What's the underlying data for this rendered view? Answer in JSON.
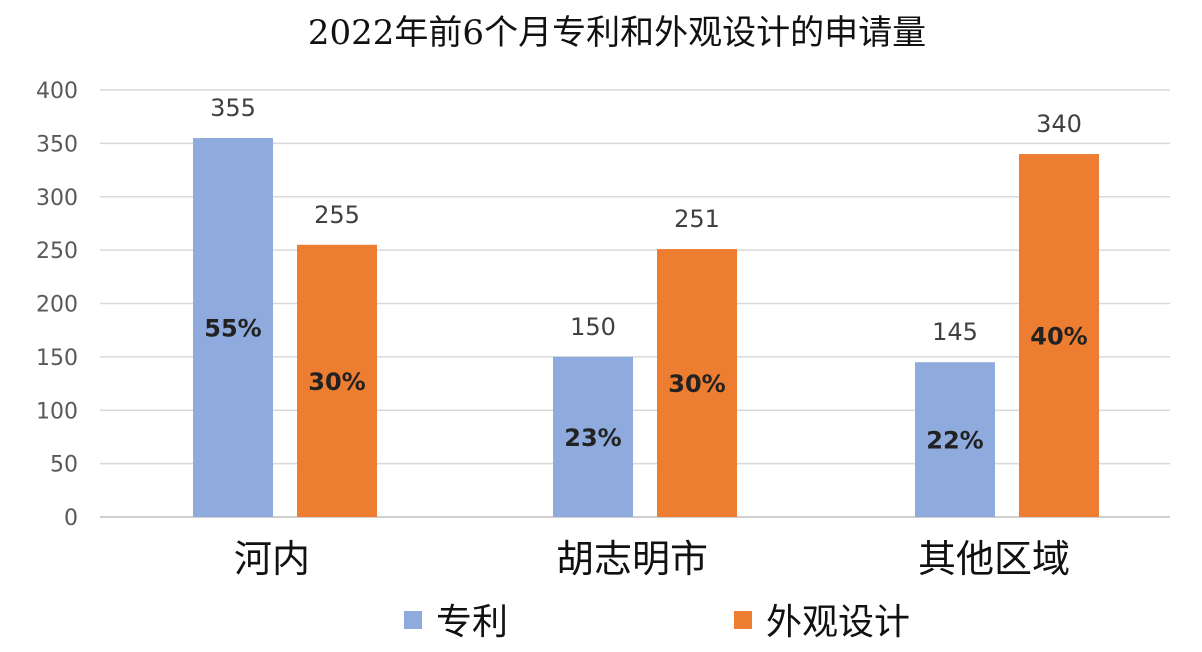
{
  "chart_data": {
    "type": "bar",
    "title": "2022年前6个月专利和外观设计的申请量",
    "categories": [
      "河内",
      "胡志明市",
      "其他区域"
    ],
    "series": [
      {
        "name": "专利",
        "color": "#8FAADC",
        "values": [
          355,
          150,
          145
        ],
        "percent_labels": [
          "55%",
          "23%",
          "22%"
        ]
      },
      {
        "name": "外观设计",
        "color": "#ED7D31",
        "values": [
          255,
          251,
          340
        ],
        "percent_labels": [
          "30%",
          "30%",
          "40%"
        ]
      }
    ],
    "ylim": [
      0,
      400
    ],
    "yticks": [
      0,
      50,
      100,
      150,
      200,
      250,
      300,
      350,
      400
    ],
    "grid": true,
    "legend_position": "bottom"
  }
}
